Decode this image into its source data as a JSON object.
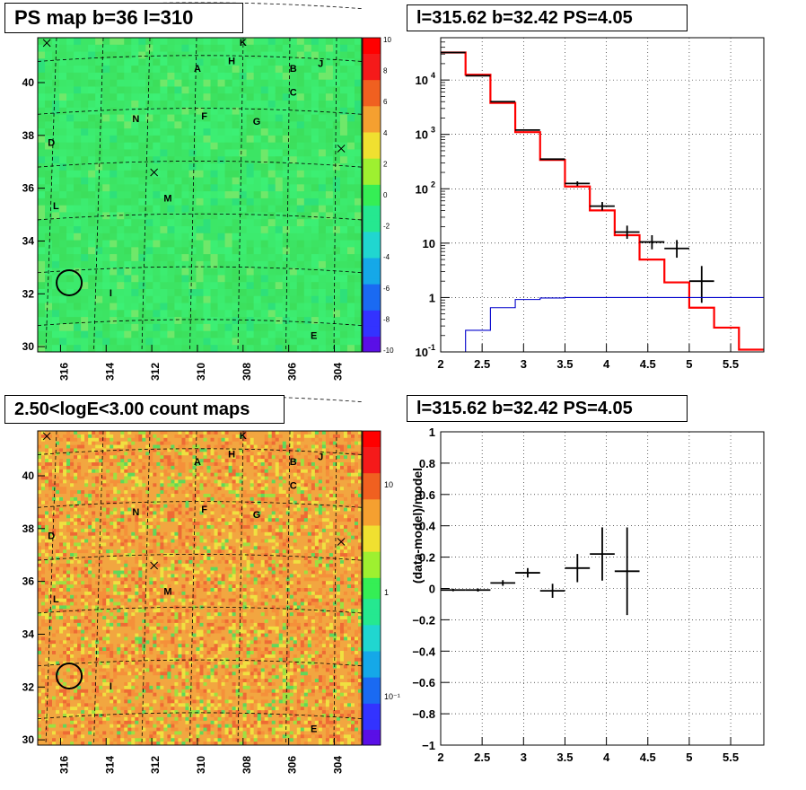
{
  "panels": {
    "ps_map": {
      "title": "PS map b=36 l=310",
      "x_ticks": [
        "316",
        "314",
        "312",
        "310",
        "308",
        "306",
        "304"
      ],
      "y_ticks": [
        "30",
        "32",
        "34",
        "36",
        "38",
        "40"
      ],
      "colorbar_ticks": [
        "10",
        "8",
        "6",
        "4",
        "2",
        "0",
        "-2",
        "-4",
        "-6",
        "-8",
        "-10"
      ],
      "source_labels": [
        "K",
        "A",
        "H",
        "B",
        "J",
        "C",
        "N",
        "F",
        "G",
        "D",
        "M",
        "L",
        "I",
        "E"
      ],
      "base_color": "#33ee55"
    },
    "count_map": {
      "title": "2.50<logE<3.00 count maps",
      "x_ticks": [
        "316",
        "314",
        "312",
        "310",
        "308",
        "306",
        "304"
      ],
      "y_ticks": [
        "30",
        "32",
        "34",
        "36",
        "38",
        "40"
      ],
      "colorbar_ticks": [
        "10",
        "1",
        "10⁻¹"
      ],
      "source_labels": [
        "K",
        "A",
        "H",
        "B",
        "J",
        "C",
        "N",
        "F",
        "G",
        "D",
        "M",
        "L",
        "I",
        "E"
      ],
      "base_color": "#f2a640"
    },
    "spectrum": {
      "title": "l=315.62 b=32.42 PS=4.05"
    },
    "residual": {
      "title": "l=315.62 b=32.42 PS=4.05"
    }
  },
  "chart_data": [
    {
      "type": "heatmap",
      "title": "PS map b=36 l=310",
      "x_range": [
        317,
        302.8
      ],
      "y_range": [
        29.8,
        41.7
      ],
      "x_ticks": [
        316,
        314,
        312,
        310,
        308,
        306,
        304
      ],
      "y_ticks": [
        30,
        32,
        34,
        36,
        38,
        40
      ],
      "z_range": [
        -10,
        10
      ],
      "sources": [
        {
          "label": "K",
          "l": 308.0,
          "b": 41.4
        },
        {
          "label": "A",
          "l": 310.0,
          "b": 40.4
        },
        {
          "label": "H",
          "l": 308.5,
          "b": 40.7
        },
        {
          "label": "B",
          "l": 305.8,
          "b": 40.4
        },
        {
          "label": "J",
          "l": 304.6,
          "b": 40.6
        },
        {
          "label": "C",
          "l": 305.8,
          "b": 39.5
        },
        {
          "label": "N",
          "l": 312.7,
          "b": 38.5
        },
        {
          "label": "F",
          "l": 309.7,
          "b": 38.6
        },
        {
          "label": "G",
          "l": 307.4,
          "b": 38.4
        },
        {
          "label": "D",
          "l": 316.4,
          "b": 37.6
        },
        {
          "label": "M",
          "l": 311.3,
          "b": 35.5
        },
        {
          "label": "L",
          "l": 316.2,
          "b": 35.2
        },
        {
          "label": "I",
          "l": 313.8,
          "b": 31.9
        },
        {
          "label": "E",
          "l": 304.9,
          "b": 30.3
        }
      ],
      "circle": {
        "l": 315.62,
        "b": 32.42
      }
    },
    {
      "type": "line",
      "title": "l=315.62 b=32.42 PS=4.05",
      "x_range": [
        2,
        5.9
      ],
      "y_range": [
        0.1,
        60000
      ],
      "y_scale": "log",
      "x_ticks": [
        2,
        2.5,
        3,
        3.5,
        4,
        4.5,
        5,
        5.5
      ],
      "y_ticks": [
        0.1,
        1,
        10,
        100,
        1000,
        10000
      ],
      "grid": true,
      "series": [
        {
          "color": "#ff0000",
          "style": "step",
          "edges": [
            2.0,
            2.3,
            2.6,
            2.9,
            3.2,
            3.5,
            3.8,
            4.1,
            4.4,
            4.7,
            5.0,
            5.3,
            5.6,
            5.9
          ],
          "values": [
            32000,
            12500,
            3800,
            1100,
            340,
            110,
            40,
            14,
            5,
            1.9,
            0.65,
            0.28,
            0.11
          ]
        },
        {
          "color": "#000000",
          "style": "points",
          "x": [
            2.15,
            2.45,
            2.75,
            3.05,
            3.35,
            3.65,
            3.95,
            4.25,
            4.55,
            4.85,
            5.15
          ],
          "y": [
            32000,
            12000,
            4000,
            1200,
            350,
            125,
            48,
            16,
            10.5,
            8,
            2
          ],
          "y_err_low": [
            0,
            0,
            0,
            0,
            0,
            12,
            8,
            4,
            2.8,
            2.6,
            1.2
          ],
          "y_err_high": [
            0,
            0,
            0,
            0,
            0,
            12,
            9,
            5,
            3.5,
            3.4,
            1.8
          ]
        },
        {
          "color": "#0000cc",
          "style": "step",
          "edges": [
            2.0,
            2.3,
            2.6,
            2.9,
            3.2,
            3.5,
            3.8,
            4.1,
            4.4,
            4.7,
            5.0,
            5.3,
            5.6,
            5.9
          ],
          "values": [
            0.09,
            0.25,
            0.65,
            0.92,
            0.98,
            1.0,
            1.0,
            1.0,
            1.0,
            1.0,
            1.0,
            1.0,
            1.0
          ]
        }
      ]
    },
    {
      "type": "heatmap",
      "title": "2.50<logE<3.00 count maps",
      "x_range": [
        317,
        302.8
      ],
      "y_range": [
        29.8,
        41.7
      ],
      "x_ticks": [
        316,
        314,
        312,
        310,
        308,
        306,
        304
      ],
      "y_ticks": [
        30,
        32,
        34,
        36,
        38,
        40
      ],
      "z_scale": "log",
      "z_ticks": [
        0.1,
        1,
        10
      ]
    },
    {
      "type": "scatter",
      "title": "l=315.62 b=32.42 PS=4.05",
      "ylabel": "(data-model)/model",
      "x_range": [
        2,
        5.9
      ],
      "y_range": [
        -1,
        1
      ],
      "x_ticks": [
        2,
        2.5,
        3,
        3.5,
        4,
        4.5,
        5,
        5.5
      ],
      "y_ticks": [
        -1,
        -0.8,
        -0.6,
        -0.4,
        -0.2,
        0,
        0.2,
        0.4,
        0.6,
        0.8,
        1
      ],
      "grid": true,
      "x": [
        2.15,
        2.45,
        2.75,
        3.05,
        3.35,
        3.65,
        3.95,
        4.25
      ],
      "y": [
        -0.01,
        -0.01,
        0.035,
        0.1,
        -0.015,
        0.13,
        0.22,
        0.11
      ],
      "x_err": [
        0.15,
        0.15,
        0.15,
        0.15,
        0.15,
        0.15,
        0.15,
        0.15
      ],
      "y_err": [
        0.008,
        0.01,
        0.018,
        0.03,
        0.045,
        0.09,
        0.17,
        0.28
      ]
    }
  ]
}
